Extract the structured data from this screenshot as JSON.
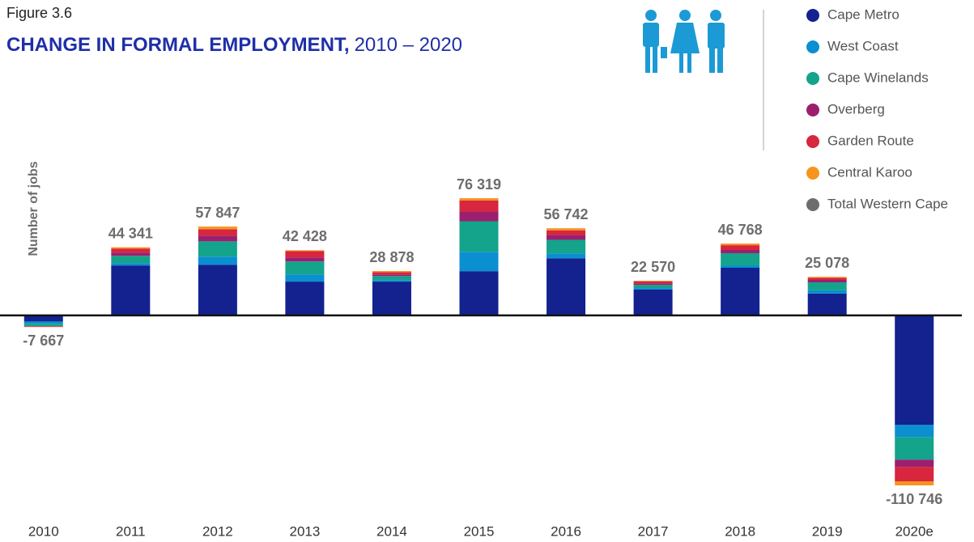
{
  "chart_data": {
    "type": "stacked_bar",
    "figure_label": "Figure 3.6",
    "title": "CHANGE IN FORMAL EMPLOYMENT,",
    "title_years": "2010 – 2020",
    "y_label": "Number of jobs",
    "categories": [
      "2010",
      "2011",
      "2012",
      "2013",
      "2014",
      "2015",
      "2016",
      "2017",
      "2018",
      "2019",
      "2020e"
    ],
    "series": [
      {
        "name": "Cape Metro",
        "color": "#13228f",
        "values": [
          -4000,
          32500,
          33000,
          22000,
          22000,
          28800,
          37200,
          16800,
          31000,
          14200,
          -71400
        ]
      },
      {
        "name": "West Coast",
        "color": "#0a8fd0",
        "values": [
          -1500,
          1600,
          5200,
          4700,
          1000,
          12600,
          3100,
          1000,
          1600,
          2100,
          -7900
        ]
      },
      {
        "name": "Cape Winelands",
        "color": "#14a38b",
        "values": [
          -1500,
          4700,
          10000,
          8400,
          2600,
          19900,
          8900,
          2100,
          7900,
          5200,
          -14700
        ]
      },
      {
        "name": "Overberg",
        "color": "#9b1f6e",
        "values": [
          -300,
          2100,
          3700,
          2600,
          1000,
          6300,
          3100,
          1000,
          2100,
          1600,
          -4700
        ]
      },
      {
        "name": "Garden Route",
        "color": "#d7263d",
        "values": [
          -200,
          2600,
          4200,
          4200,
          1600,
          7300,
          3100,
          1300,
          3100,
          1300,
          -9400
        ]
      },
      {
        "name": "Central Karoo",
        "color": "#f7941d",
        "values": [
          -167,
          841,
          1747,
          528,
          678,
          1419,
          1342,
          370,
          1068,
          678,
          -2646
        ]
      },
      {
        "name": "Total Western Cape",
        "color": "#6d6d6d",
        "total": true,
        "values": [
          -7667,
          44341,
          57847,
          42428,
          28878,
          76319,
          56742,
          22570,
          46768,
          25078,
          -110746
        ],
        "value_labels": [
          "-7 667",
          "44 341",
          "57 847",
          "42 428",
          "28 878",
          "76 319",
          "56 742",
          "22 570",
          "46 768",
          "25 078",
          "-110 746"
        ]
      }
    ]
  }
}
